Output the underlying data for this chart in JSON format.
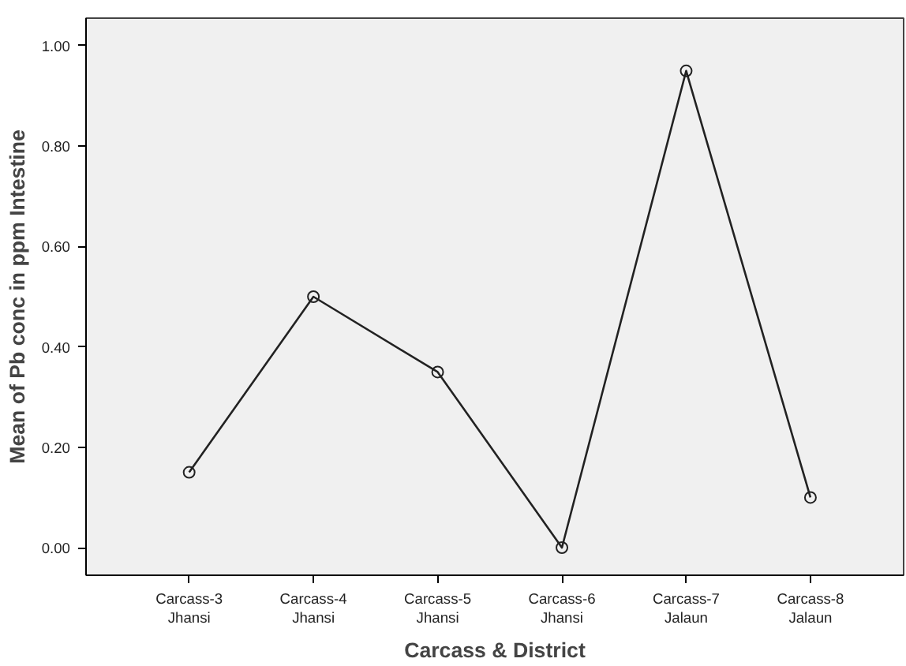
{
  "chart_data": {
    "type": "line",
    "xlabel": "Carcass & District",
    "ylabel": "Mean of Pb conc in ppm Intestine",
    "categories": [
      "Carcass-3\nJhansi",
      "Carcass-4\nJhansi",
      "Carcass-5\nJhansi",
      "Carcass-6\nJhansi",
      "Carcass-7\nJalaun",
      "Carcass-8\nJalaun"
    ],
    "series": [
      {
        "color": "#222222",
        "values": [
          0.15,
          0.5,
          0.35,
          0.0,
          0.95,
          0.1
        ]
      }
    ],
    "ylim": [
      -0.055,
      1.055
    ],
    "yticks": [
      {
        "value": 0,
        "label": "0.00"
      },
      {
        "value": 0.2,
        "label": "0.20"
      },
      {
        "value": 0.4,
        "label": "0.40"
      },
      {
        "value": 0.6,
        "label": "0.60"
      },
      {
        "value": 0.8,
        "label": "0.80"
      },
      {
        "value": 1,
        "label": "1.00"
      }
    ],
    "marker": "circle",
    "line_style": "solid"
  }
}
